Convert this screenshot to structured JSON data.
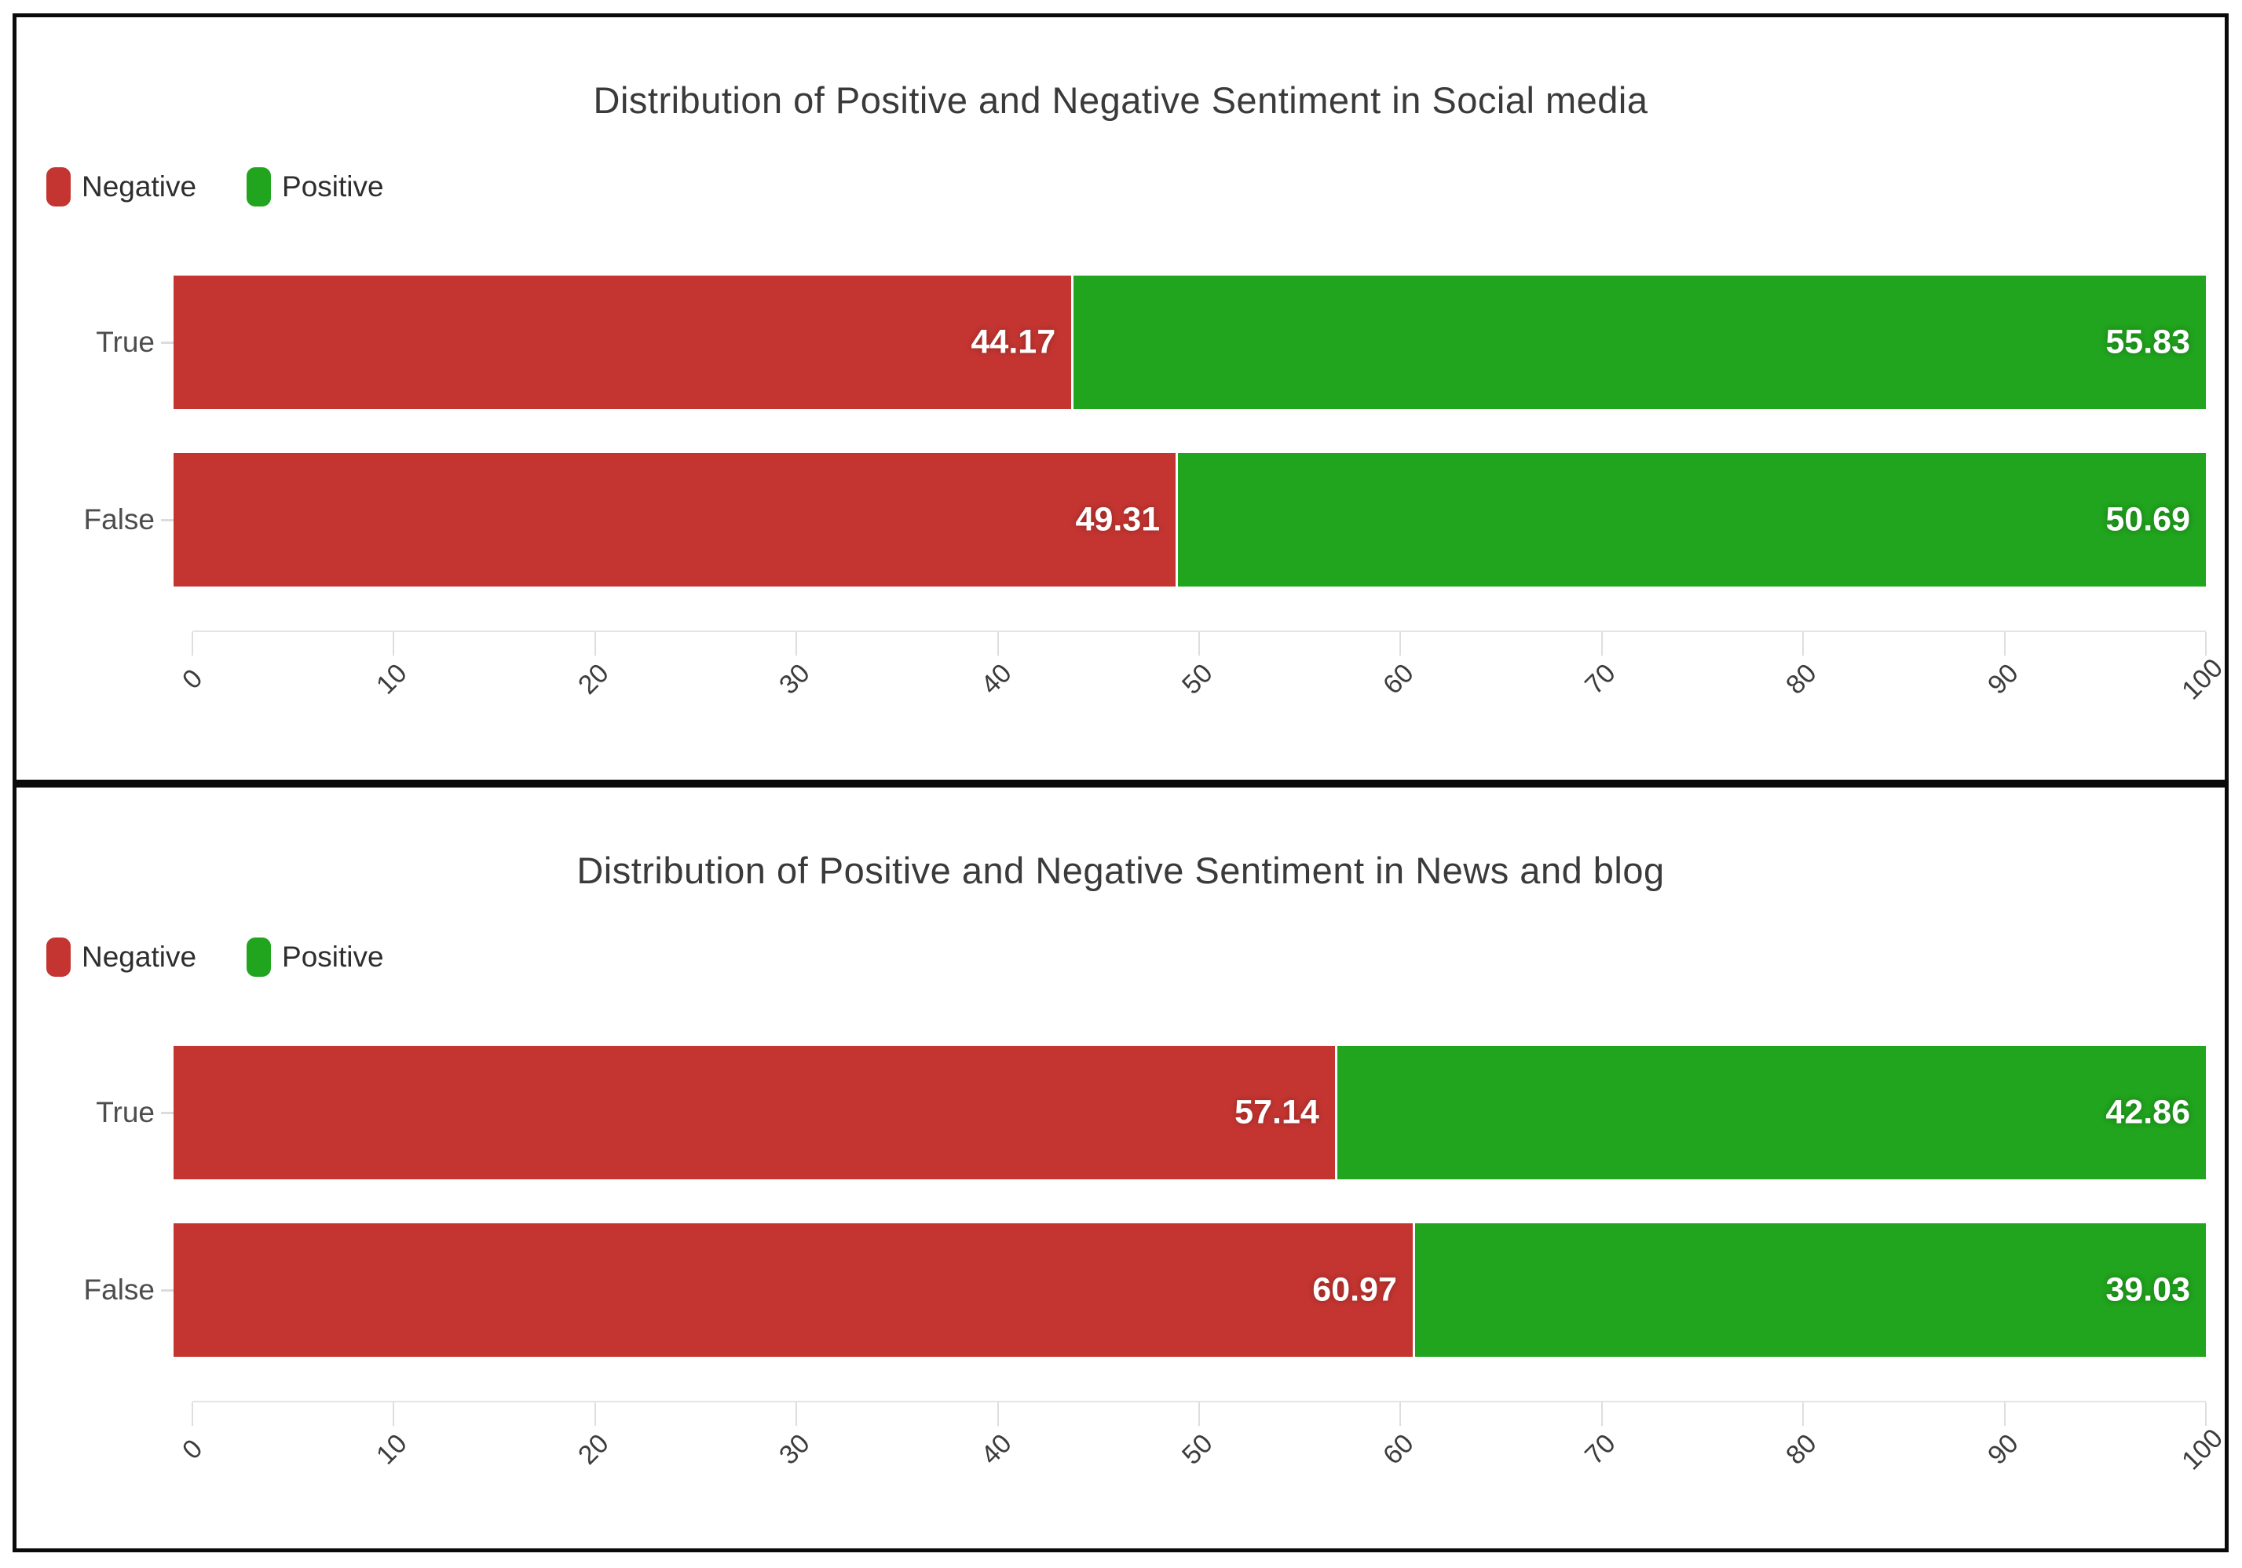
{
  "legend": {
    "negative_label": "Negative",
    "positive_label": "Positive"
  },
  "colors": {
    "negative": "#c43531",
    "positive": "#21a41e",
    "panel_border": "#0a0a0a",
    "title_text": "#3a3a3a",
    "category_text": "#4d4d4d",
    "tick_text": "#3c3c3c",
    "bar_value_text": "#ffffff"
  },
  "chart_data": [
    {
      "type": "bar",
      "orientation": "horizontal-stacked",
      "title": "Distribution of Positive and Negative Sentiment in Social media",
      "categories": [
        "True",
        "False"
      ],
      "series": [
        {
          "name": "Negative",
          "color": "#c43531",
          "values": [
            44.17,
            49.31
          ]
        },
        {
          "name": "Positive",
          "color": "#21a41e",
          "values": [
            55.83,
            50.69
          ]
        }
      ],
      "xlim": [
        0,
        100
      ],
      "x_ticks": [
        0,
        10,
        20,
        30,
        40,
        50,
        60,
        70,
        80,
        90,
        100
      ],
      "tick_rotation": 45,
      "legend_position": "top-left",
      "grid": false,
      "value_label_decimals": 2
    },
    {
      "type": "bar",
      "orientation": "horizontal-stacked",
      "title": "Distribution of Positive and Negative Sentiment in News and blog",
      "categories": [
        "True",
        "False"
      ],
      "series": [
        {
          "name": "Negative",
          "color": "#c43531",
          "values": [
            57.14,
            60.97
          ]
        },
        {
          "name": "Positive",
          "color": "#21a41e",
          "values": [
            42.86,
            39.03
          ]
        }
      ],
      "xlim": [
        0,
        100
      ],
      "x_ticks": [
        0,
        10,
        20,
        30,
        40,
        50,
        60,
        70,
        80,
        90,
        100
      ],
      "tick_rotation": 45,
      "legend_position": "top-left",
      "grid": false,
      "value_label_decimals": 2
    }
  ]
}
